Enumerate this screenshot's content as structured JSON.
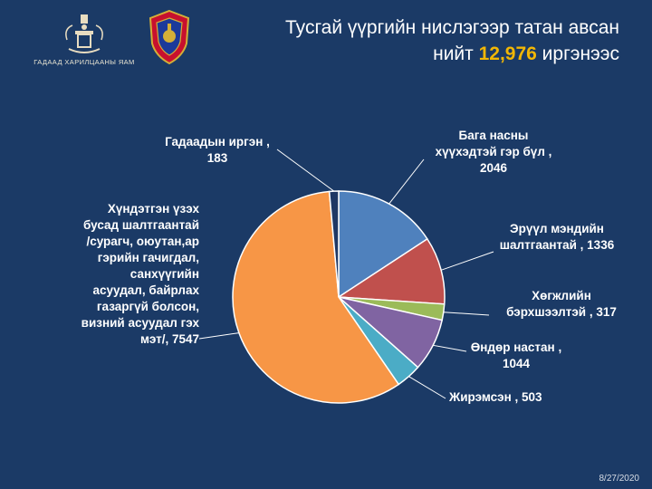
{
  "header": {
    "ministry_name": "ГАДААД ХАРИЛЦААНЫ ЯАМ",
    "title_line1": "Тусгай үүргийн нислэгээр татан авсан",
    "title_pre": "нийт ",
    "title_number": "12,976",
    "title_post": " иргэнээс"
  },
  "colors": {
    "background": "#1b3a66",
    "accent": "#f2b705"
  },
  "chart_data": {
    "type": "pie",
    "total": 12976,
    "slices": [
      {
        "label": "Бага насны хүүхэдтэй гэр бүл",
        "value": 2046,
        "color": "#4f81bd",
        "label_lines": [
          "Бага насны",
          "хүүхэдтэй гэр бүл ,",
          "2046"
        ]
      },
      {
        "label": "Эрүүл мэндийн шалтгаантай",
        "value": 1336,
        "color": "#c0504d",
        "label_lines": [
          "Эрүүл мэндийн",
          "шалтгаантай , 1336"
        ]
      },
      {
        "label": "Хөгжлийн бэрхшээлтэй",
        "value": 317,
        "color": "#9bbb59",
        "label_lines": [
          "Хөгжлийн",
          "бэрхшээлтэй , 317"
        ]
      },
      {
        "label": "Өндөр настан",
        "value": 1044,
        "color": "#8064a2",
        "label_lines": [
          "Өндөр настан ,",
          "1044"
        ]
      },
      {
        "label": "Жирэмсэн",
        "value": 503,
        "color": "#4bacc6",
        "label_lines": [
          "Жирэмсэн , 503"
        ]
      },
      {
        "label": "Хүндэтгэн үзэх бусад шалтгаантай /сурагч, оюутан,ар гэрийн гачигдал, санхүүгийн асуудал, байрлах газаргүй болсон, визний асуудал гэх мэт/",
        "value": 7547,
        "color": "#f79646",
        "label_lines": [
          "Хүндэтгэн үзэх",
          "бусад шалтгаантай",
          "/сурагч, оюутан,ар",
          "гэрийн гачигдал,",
          "санхүүгийн",
          "асуудал, байрлах",
          "газаргүй болсон,",
          "визний асуудал гэх",
          "мэт/, 7547"
        ]
      },
      {
        "label": "Гадаадын иргэн",
        "value": 183,
        "color": "#1f3864",
        "label_lines": [
          "Гадаадын иргэн ,",
          "183"
        ]
      }
    ]
  },
  "footer": {
    "date": "8/27/2020"
  }
}
